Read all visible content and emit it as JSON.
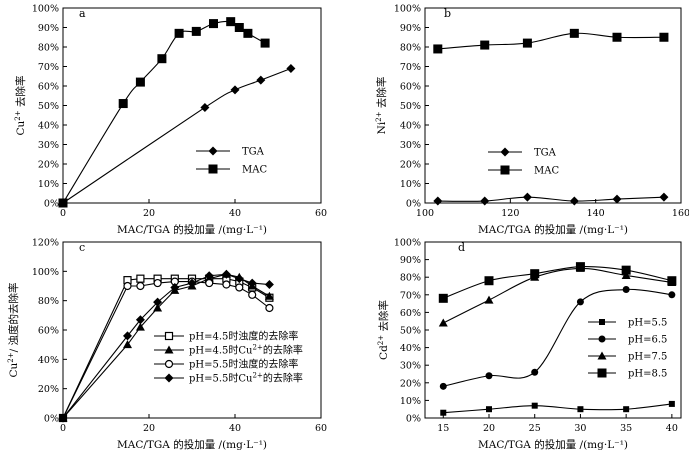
{
  "chart_data": [
    {
      "id": "a",
      "type": "line",
      "panel_label": "a",
      "xlabel": "MAC/TGA 的投加量 /(mg·L⁻¹)",
      "ylabel": {
        "base": "Cu",
        "sup": "2+",
        "suffix": " 去除率"
      },
      "xlim": [
        0,
        60
      ],
      "xticks": [
        0,
        20,
        40,
        60
      ],
      "ylim": [
        0,
        100
      ],
      "yticks": [
        0,
        10,
        20,
        30,
        40,
        50,
        60,
        70,
        80,
        90,
        100
      ],
      "ytick_suffix": "%",
      "smooth": true,
      "legend_position": "center-right",
      "series": [
        {
          "name": "TGA",
          "marker": "diamond",
          "x": [
            0,
            33,
            40,
            46,
            53
          ],
          "y": [
            0,
            49,
            58,
            63,
            69
          ]
        },
        {
          "name": "MAC",
          "marker": "square",
          "x": [
            0,
            14,
            18,
            23,
            27,
            31,
            35,
            39,
            41,
            43,
            47
          ],
          "y": [
            0,
            51,
            62,
            74,
            87,
            88,
            92,
            93,
            90,
            87,
            82
          ]
        }
      ]
    },
    {
      "id": "b",
      "type": "line",
      "panel_label": "b",
      "xlabel": "MAC/TGA 的投加量 /(mg·L⁻¹)",
      "ylabel": {
        "base": "Ni",
        "sup": "2+",
        "suffix": " 去除率"
      },
      "xlim": [
        100,
        160
      ],
      "xticks": [
        100,
        120,
        140,
        160
      ],
      "ylim": [
        0,
        100
      ],
      "yticks": [
        0,
        10,
        20,
        30,
        40,
        50,
        60,
        70,
        80,
        90,
        100
      ],
      "ytick_suffix": "%",
      "smooth": true,
      "legend_position": "bottom-center",
      "series": [
        {
          "name": "TGA",
          "marker": "diamond",
          "x": [
            103,
            114,
            124,
            135,
            145,
            156
          ],
          "y": [
            1,
            1,
            3,
            1,
            2,
            3
          ]
        },
        {
          "name": "MAC",
          "marker": "square",
          "x": [
            103,
            114,
            124,
            135,
            145,
            156
          ],
          "y": [
            79,
            81,
            82,
            87,
            85,
            85
          ]
        }
      ]
    },
    {
      "id": "c",
      "type": "line",
      "panel_label": "c",
      "xlabel": "MAC/TGA 的投加量 /(mg·L⁻¹)",
      "ylabel": {
        "base": "Cu",
        "sup": "2+",
        "suffix": "/ 浊度的去除率"
      },
      "xlim": [
        0,
        60
      ],
      "xticks": [
        0,
        20,
        40,
        60
      ],
      "ylim": [
        0,
        120
      ],
      "yticks": [
        0,
        20,
        40,
        60,
        80,
        100,
        120
      ],
      "ytick_suffix": "%",
      "smooth": false,
      "legend_position": "bottom-right",
      "series": [
        {
          "name_parts": [
            "pH=4.5时浊度的去除率"
          ],
          "marker": "square-open",
          "x": [
            0,
            15,
            18,
            22,
            26,
            30,
            34,
            38,
            41,
            44,
            48
          ],
          "y": [
            0,
            94,
            95,
            95,
            95,
            95,
            95,
            95,
            93,
            89,
            82
          ]
        },
        {
          "name_parts": [
            "pH=4.5时Cu",
            "2+",
            "的去除率"
          ],
          "marker": "triangle",
          "x": [
            0,
            15,
            18,
            22,
            26,
            30,
            34,
            38,
            41,
            44,
            48
          ],
          "y": [
            0,
            50,
            62,
            75,
            87,
            90,
            95,
            98,
            96,
            90,
            83
          ]
        },
        {
          "name_parts": [
            "pH=5.5时浊度的去除率"
          ],
          "marker": "circle-open",
          "x": [
            0,
            15,
            18,
            22,
            26,
            30,
            34,
            38,
            41,
            44,
            48
          ],
          "y": [
            0,
            90,
            90,
            92,
            93,
            93,
            92,
            91,
            89,
            84,
            75
          ]
        },
        {
          "name_parts": [
            "pH=5.5时Cu",
            "2+",
            "的去除率"
          ],
          "marker": "diamond",
          "x": [
            0,
            15,
            18,
            22,
            26,
            30,
            34,
            38,
            41,
            44,
            48
          ],
          "y": [
            0,
            56,
            67,
            79,
            89,
            92,
            97,
            98,
            95,
            92,
            91
          ]
        }
      ]
    },
    {
      "id": "d",
      "type": "line",
      "panel_label": "d",
      "xlabel": "MAC/TGA 的投加量 /(mg·L⁻¹)",
      "ylabel": {
        "base": "Cd",
        "sup": "2+",
        "suffix": " 去除率"
      },
      "xlim": [
        13,
        41
      ],
      "xticks": [
        15,
        20,
        25,
        30,
        35,
        40
      ],
      "ylim": [
        0,
        100
      ],
      "yticks": [
        0,
        10,
        20,
        30,
        40,
        50,
        60,
        70,
        80,
        90,
        100
      ],
      "ytick_suffix": "%",
      "smooth": true,
      "legend_position": "center-right",
      "series": [
        {
          "name": "pH=5.5",
          "marker": "square-small",
          "x": [
            15,
            20,
            25,
            30,
            35,
            40
          ],
          "y": [
            3,
            5,
            7,
            5,
            5,
            8
          ]
        },
        {
          "name": "pH=6.5",
          "marker": "circle",
          "x": [
            15,
            20,
            25,
            30,
            35,
            40
          ],
          "y": [
            18,
            24,
            26,
            66,
            73,
            70
          ]
        },
        {
          "name": "pH=7.5",
          "marker": "triangle",
          "x": [
            15,
            20,
            25,
            30,
            35,
            40
          ],
          "y": [
            54,
            67,
            80,
            85,
            81,
            77
          ]
        },
        {
          "name": "pH=8.5",
          "marker": "square",
          "x": [
            15,
            20,
            25,
            30,
            35,
            40
          ],
          "y": [
            68,
            78,
            82,
            86,
            84,
            78
          ]
        }
      ]
    }
  ]
}
